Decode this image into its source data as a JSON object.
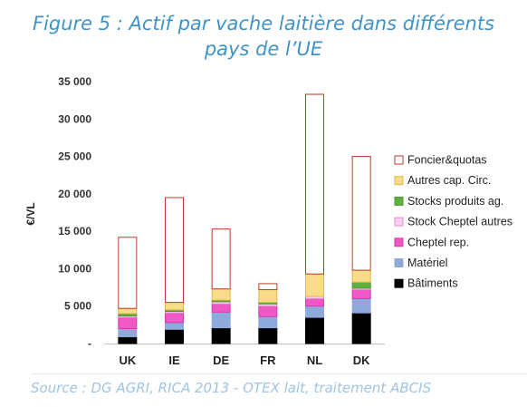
{
  "figure": {
    "title_line1": "Figure 5 : Actif par vache laitière dans différents",
    "title_line2": "pays de l’UE",
    "source": "Source : DG AGRI, RICA 2013 - OTEX lait,  traitement ABCIS"
  },
  "chart_data": {
    "type": "bar",
    "stacked": true,
    "categories": [
      "UK",
      "IE",
      "DE",
      "FR",
      "NL",
      "DK"
    ],
    "ylabel": "€/VL",
    "xlabel": "",
    "ylim": [
      0,
      35000
    ],
    "yticks": [
      0,
      5000,
      10000,
      15000,
      20000,
      25000,
      30000,
      35000
    ],
    "ytick_labels": [
      "-",
      "5 000",
      "10 000",
      "15 000",
      "20 000",
      "25 000",
      "30 000",
      "35 000"
    ],
    "grid": false,
    "legend_position": "right",
    "series": [
      {
        "name": "Bâtiments",
        "color": "#000000",
        "border": "#000000",
        "values": [
          900,
          1900,
          2100,
          2100,
          3500,
          4100
        ]
      },
      {
        "name": "Matériel",
        "color": "#8eaadb",
        "border": "#8eaadb",
        "values": [
          1100,
          900,
          2100,
          1500,
          1500,
          1900
        ]
      },
      {
        "name": "Cheptel rep.",
        "color": "#f058c5",
        "border": "#d43aaa",
        "values": [
          1500,
          1300,
          1100,
          1400,
          1000,
          1200
        ]
      },
      {
        "name": "Stock Cheptel autres",
        "color": "#fbd0f0",
        "border": "#e48bd2",
        "values": [
          200,
          200,
          300,
          300,
          300,
          200
        ]
      },
      {
        "name": "Stocks produits ag.",
        "color": "#5fae3f",
        "border": "#4a9a2e",
        "values": [
          300,
          200,
          200,
          200,
          0,
          800
        ]
      },
      {
        "name": "Autres cap. Circ.",
        "color": "#f8dc8a",
        "border": "#e3b84a",
        "values": [
          700,
          1000,
          1500,
          1700,
          3000,
          1600
        ]
      },
      {
        "name": "Foncier&quotas",
        "color": "#ffffff",
        "border": "#c0392b",
        "values": [
          9500,
          14000,
          8000,
          800,
          24000,
          15200
        ]
      }
    ],
    "legend_order": [
      "Foncier&quotas",
      "Autres cap. Circ.",
      "Stocks produits ag.",
      "Stock Cheptel autres",
      "Cheptel rep.",
      "Matériel",
      "Bâtiments"
    ]
  }
}
